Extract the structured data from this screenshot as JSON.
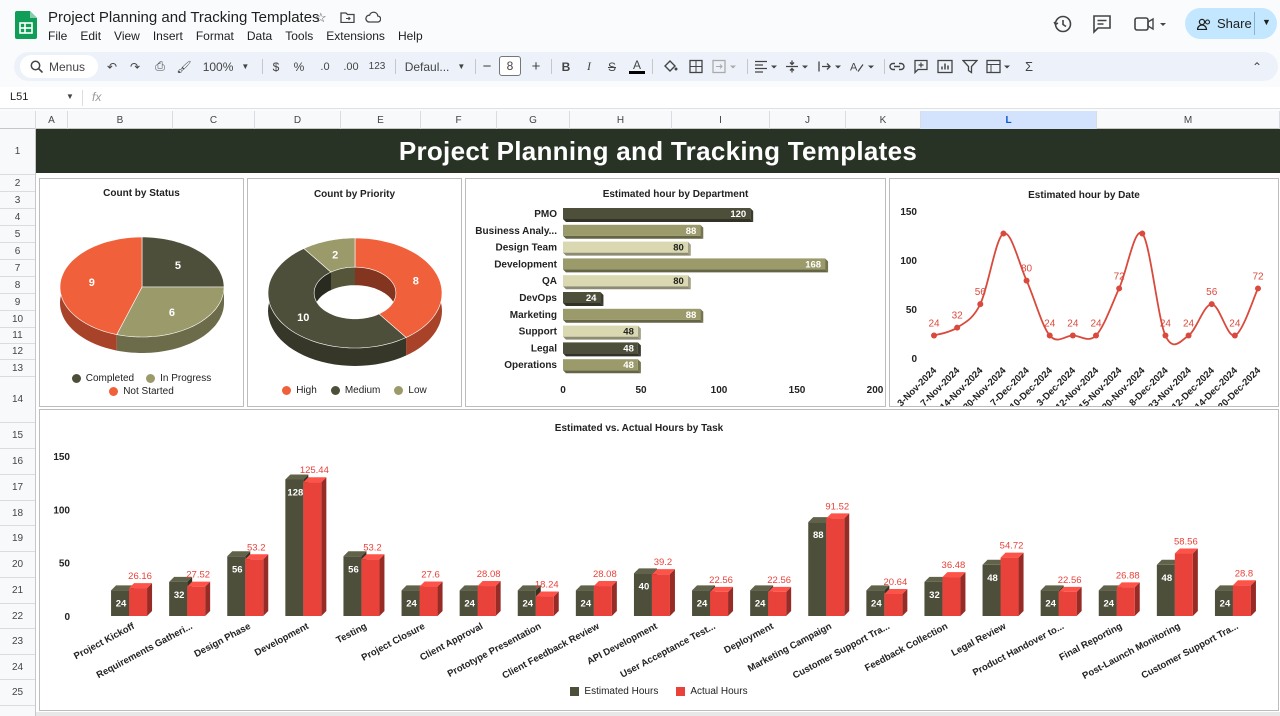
{
  "app": {
    "title": "Project Planning and Tracking Templates",
    "menu": [
      "File",
      "Edit",
      "View",
      "Insert",
      "Format",
      "Data",
      "Tools",
      "Extensions",
      "Help"
    ],
    "share_label": "Share"
  },
  "toolbar": {
    "search_label": "Menus",
    "zoom": "100%",
    "currency": "$",
    "percent": "%",
    "dec_less": ".0",
    "dec_more": ".00",
    "number_format": "123",
    "font": "Defaul...",
    "font_size": "8"
  },
  "formula": {
    "cell_ref": "L51",
    "fx": "fx"
  },
  "columns": [
    "A",
    "B",
    "C",
    "D",
    "E",
    "F",
    "G",
    "H",
    "I",
    "J",
    "K",
    "L",
    "M"
  ],
  "rows": [
    "1",
    "2",
    "3",
    "4",
    "5",
    "6",
    "7",
    "8",
    "9",
    "10",
    "11",
    "12",
    "13",
    "14",
    "15",
    "16",
    "17",
    "18",
    "19",
    "20",
    "21",
    "22",
    "23",
    "24",
    "25"
  ],
  "selected_column": "L",
  "banner": {
    "title": "Project Planning and Tracking Templates"
  },
  "colors": {
    "dark": "#4d4f3a",
    "olive": "#9b9a6a",
    "light": "#d9d8b0",
    "red": "#e8553a",
    "redline": "#d94a3d",
    "banner": "#283225"
  },
  "chart_data": [
    {
      "type": "pie",
      "title": "Count by Status",
      "categories": [
        "Completed",
        "In Progress",
        "Not Started"
      ],
      "values": [
        5,
        6,
        9
      ],
      "colors": [
        "#4d4f3a",
        "#9b9a6a",
        "#f0603a"
      ]
    },
    {
      "type": "pie",
      "subtype": "donut",
      "title": "Count by Priority",
      "categories": [
        "High",
        "Medium",
        "Low"
      ],
      "values": [
        8,
        10,
        2
      ],
      "colors": [
        "#f0603a",
        "#4d4f3a",
        "#9b9a6a"
      ]
    },
    {
      "type": "bar",
      "orientation": "horizontal",
      "title": "Estimated hour by Department",
      "categories": [
        "PMO",
        "Business Analy...",
        "Design Team",
        "Development",
        "QA",
        "DevOps",
        "Marketing",
        "Support",
        "Legal",
        "Operations"
      ],
      "values": [
        120,
        88,
        80,
        168,
        80,
        24,
        88,
        48,
        48,
        48
      ],
      "xlim": [
        0,
        200
      ],
      "xticks": [
        0,
        50,
        100,
        150,
        200
      ],
      "bar_colors": [
        "#4d4f3a",
        "#9b9a6a",
        "#d9d8b0",
        "#9b9a6a",
        "#d9d8b0",
        "#4d4f3a",
        "#9b9a6a",
        "#d9d8b0",
        "#4d4f3a",
        "#9b9a6a"
      ]
    },
    {
      "type": "line",
      "title": "Estimated hour by Date",
      "categories": [
        "3-Nov-2024",
        "7-Nov-2024",
        "14-Nov-2024",
        "30-Nov-2024",
        "7-Dec-2024",
        "10-Dec-2024",
        "3-Dec-2024",
        "12-Nov-2024",
        "15-Nov-2024",
        "20-Nov-2024",
        "8-Dec-2024",
        "23-Nov-2024",
        "12-Dec-2024",
        "14-Dec-2024",
        "20-Dec-2024"
      ],
      "values": [
        24,
        32,
        56,
        128,
        80,
        24,
        24,
        24,
        72,
        128,
        24,
        24,
        56,
        24,
        72
      ],
      "labels": [
        "24",
        "32",
        "56",
        "",
        "80",
        "24",
        "24",
        "24",
        "72",
        "",
        "24",
        "24",
        "56",
        "24",
        "72"
      ],
      "ylim": [
        0,
        150
      ],
      "yticks": [
        0,
        50,
        100,
        150
      ],
      "color": "#d94a3d"
    },
    {
      "type": "bar",
      "title": "Estimated vs. Actual Hours by Task",
      "categories": [
        "Project Kickoff",
        "Requirements Gatheri...",
        "Design Phase",
        "Development",
        "Testing",
        "Project Closure",
        "Client Approval",
        "Prototype Presentation",
        "Client Feedback Review",
        "API Development",
        "User Acceptance Test...",
        "Deployment",
        "Marketing Campaign",
        "Customer Support Tra...",
        "Feedback Collection",
        "Legal Review",
        "Product Handover to...",
        "Final Reporting",
        "Post-Launch Monitoring",
        "Customer Support Tra..."
      ],
      "series": [
        {
          "name": "Estimated Hours",
          "values": [
            24,
            32,
            56,
            128,
            56,
            24,
            24,
            24,
            24,
            40,
            24,
            24,
            88,
            24,
            32,
            48,
            24,
            24,
            48,
            24
          ],
          "labels": [
            "24",
            "32",
            "56",
            "128",
            "56",
            "24",
            "24",
            "24",
            "24",
            "40",
            "24",
            "24",
            "88",
            "24",
            "32",
            "48",
            "24",
            "24",
            "48",
            "24"
          ],
          "color": "#4d4f3a"
        },
        {
          "name": "Actual Hours",
          "values": [
            26.16,
            27.52,
            53.2,
            125.44,
            53.2,
            27.6,
            28.08,
            18.24,
            28.08,
            39.2,
            22.56,
            22.56,
            91.52,
            20.64,
            36.48,
            54.72,
            22.56,
            26.88,
            58.56,
            28.8
          ],
          "labels": [
            "26.16",
            "27.52",
            "53.2",
            "125.44",
            "53.2",
            "27.6",
            "28.08",
            "18.24",
            "28.08",
            "39.2",
            "22.56",
            "22.56",
            "91.52",
            "20.64",
            "36.48",
            "54.72",
            "22.56",
            "26.88",
            "58.56",
            "28.8"
          ],
          "color": "#e8423a"
        }
      ],
      "ylim": [
        0,
        150
      ],
      "yticks": [
        0,
        50,
        100,
        150
      ]
    }
  ]
}
